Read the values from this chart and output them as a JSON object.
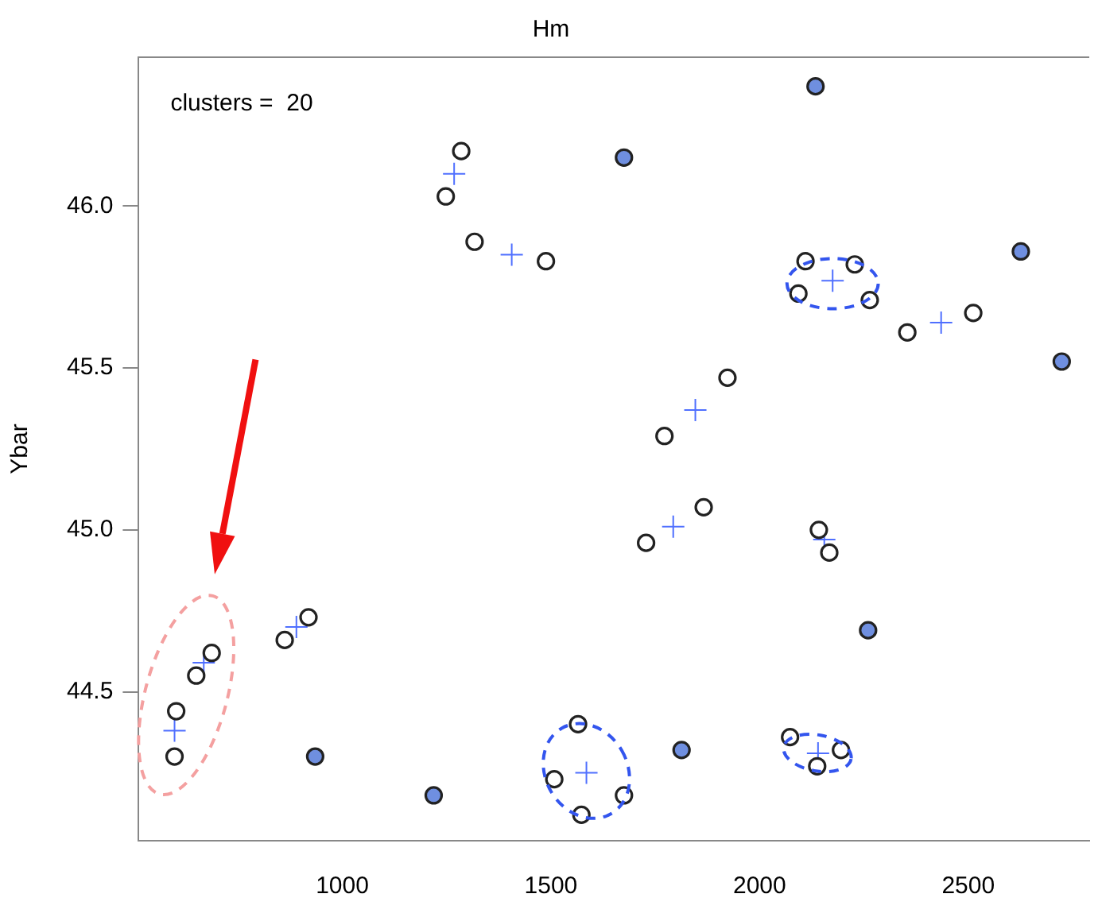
{
  "chart_data": {
    "type": "scatter",
    "title": "Hm",
    "ylabel": "Ybar",
    "annotations": [
      "clusters =  20"
    ],
    "xlim": [
      512,
      2790
    ],
    "ylim": [
      44.04,
      46.46
    ],
    "xticks": [
      1000,
      1500,
      2000,
      2500
    ],
    "yticks": [
      {
        "value": 44.5,
        "label": "44.5"
      },
      {
        "value": 45,
        "label": "45.0"
      },
      {
        "value": 45.5,
        "label": "45.5"
      },
      {
        "value": 46,
        "label": "46.0"
      }
    ],
    "grid": false,
    "legend": false,
    "series": [
      {
        "color": "#ffffff",
        "marker": "circle",
        "x": [
          1285,
          1248,
          1317,
          1488,
          2110,
          2228,
          2093,
          2264,
          2354,
          2512,
          1923,
          1772,
          1866,
          1728,
          2142,
          2167,
          919,
          862,
          687,
          650,
          602,
          598,
          1565,
          1508,
          1573,
          1675,
          2073,
          2138,
          2195
        ],
        "values": [
          46.17,
          46.03,
          45.89,
          45.83,
          45.83,
          45.82,
          45.73,
          45.71,
          45.61,
          45.67,
          45.47,
          45.29,
          45.07,
          44.96,
          45.0,
          44.93,
          44.73,
          44.66,
          44.62,
          44.55,
          44.44,
          44.3,
          44.4,
          44.23,
          44.12,
          44.18,
          44.36,
          44.27,
          44.32
        ]
      },
      {
        "color": "#6f8fe0",
        "marker": "circle",
        "x": [
          1675,
          2134,
          2626,
          2724,
          2260,
          1813,
          935,
          1219
        ],
        "values": [
          46.15,
          46.37,
          45.86,
          45.52,
          44.69,
          44.32,
          44.3,
          44.18
        ]
      },
      {
        "color": "#4f6fff",
        "marker": "cross",
        "x": [
          1268,
          1406,
          2175,
          2435,
          1846,
          1793,
          598,
          1585,
          668,
          890,
          2155,
          2140
        ],
        "values": [
          46.1,
          45.85,
          45.77,
          45.64,
          45.37,
          45.01,
          44.38,
          44.25,
          44.59,
          44.7,
          44.97,
          44.31
        ]
      }
    ]
  }
}
